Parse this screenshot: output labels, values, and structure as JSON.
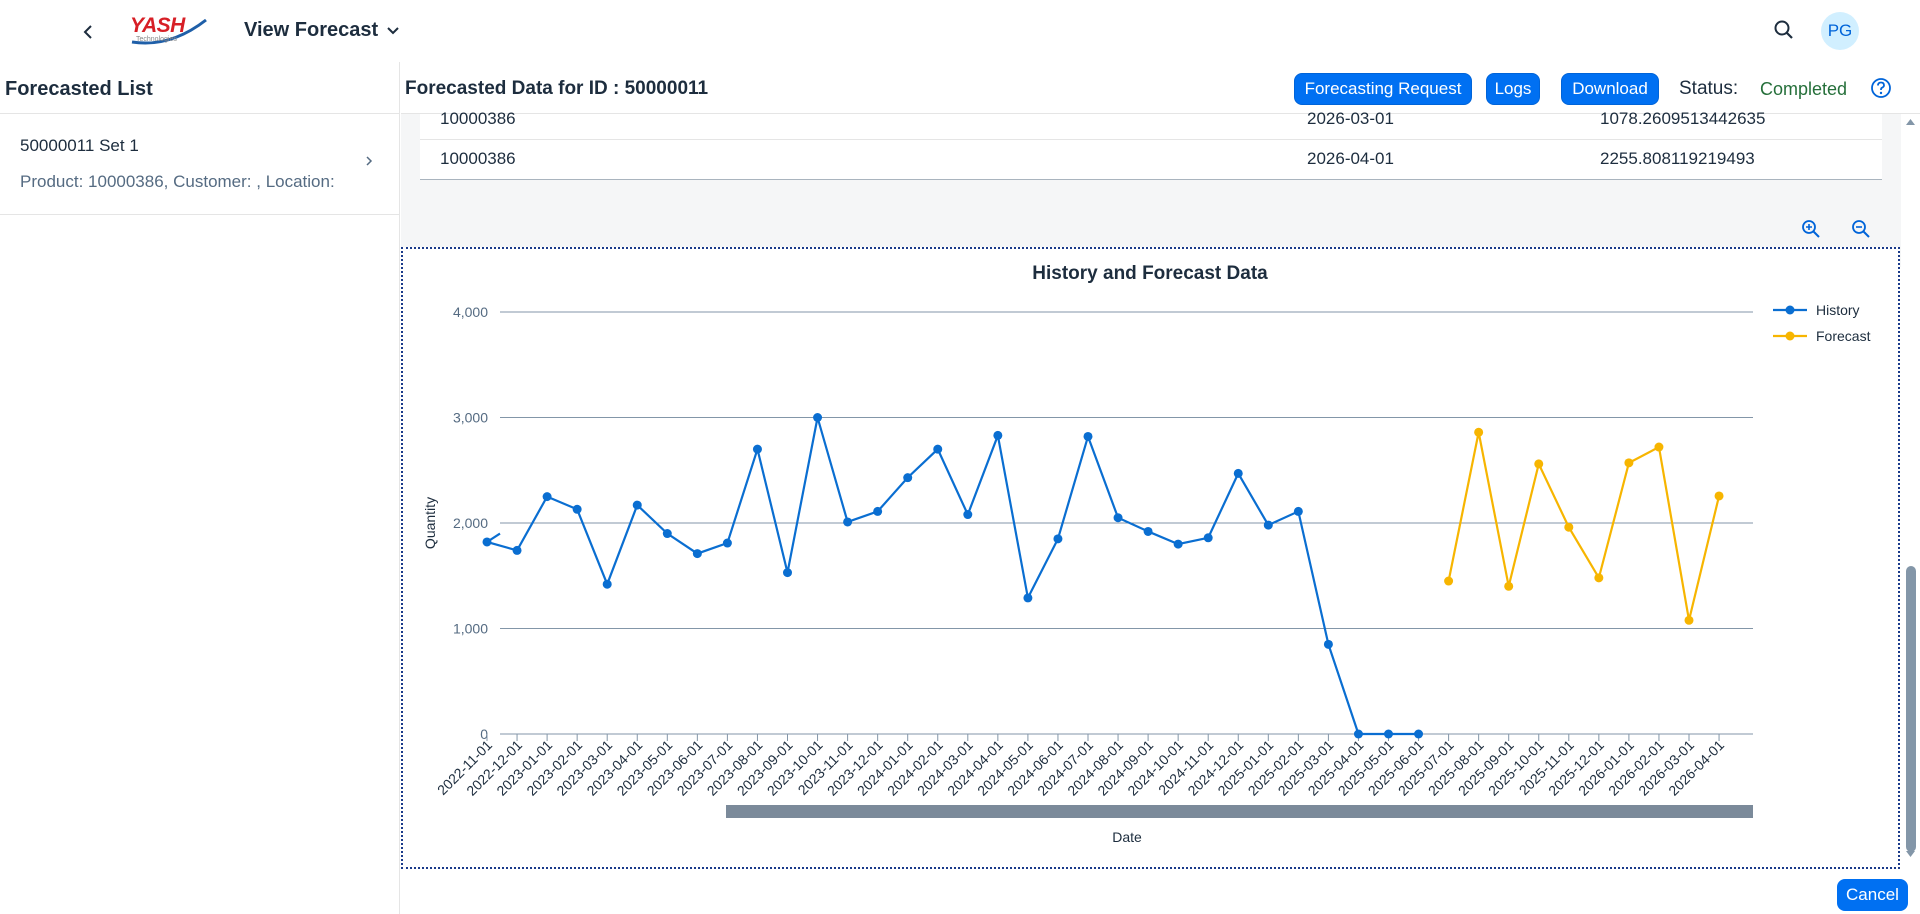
{
  "shell": {
    "app_title": "View Forecast",
    "logo_text": "YASH",
    "logo_sub": "Technologies",
    "avatar_initials": "PG"
  },
  "left": {
    "header": "Forecasted List",
    "items": [
      {
        "title": "50000011 Set 1",
        "subtitle": "Product: 10000386, Customer: , Location:"
      }
    ]
  },
  "right": {
    "title": "Forecasted Data for ID : 50000011",
    "buttons": {
      "forecasting_request": "Forecasting Request",
      "logs": "Logs",
      "download": "Download"
    },
    "status_label": "Status:",
    "status_value": "Completed",
    "table_rows": [
      {
        "product": "10000386",
        "date": "2026-03-01",
        "value": "1078.2609513442635"
      },
      {
        "product": "10000386",
        "date": "2026-04-01",
        "value": "2255.808119219493"
      }
    ],
    "cancel_label": "Cancel"
  },
  "colors": {
    "history": "#0a6ed1",
    "forecast": "#f7b500",
    "accent": "#0070f2",
    "status_positive": "#256f3a"
  },
  "chart_data": {
    "type": "line",
    "title": "History and Forecast Data",
    "xlabel": "Date",
    "ylabel": "Quantity",
    "ylim": [
      0,
      4000
    ],
    "yticks": [
      "0",
      "1,000",
      "2,000",
      "3,000",
      "4,000"
    ],
    "legend_position": "top-right",
    "grid": true,
    "categories": [
      "2022-11-01",
      "2022-12-01",
      "2023-01-01",
      "2023-02-01",
      "2023-03-01",
      "2023-04-01",
      "2023-05-01",
      "2023-06-01",
      "2023-07-01",
      "2023-08-01",
      "2023-09-01",
      "2023-10-01",
      "2023-11-01",
      "2023-12-01",
      "2024-01-01",
      "2024-02-01",
      "2024-03-01",
      "2024-04-01",
      "2024-05-01",
      "2024-06-01",
      "2024-07-01",
      "2024-08-01",
      "2024-09-01",
      "2024-10-01",
      "2024-11-01",
      "2024-12-01",
      "2025-01-01",
      "2025-02-01",
      "2025-03-01",
      "2025-04-01",
      "2025-05-01",
      "2025-06-01",
      "2025-07-01",
      "2025-08-01",
      "2025-09-01",
      "2025-10-01",
      "2025-11-01",
      "2025-12-01",
      "2026-01-01",
      "2026-02-01",
      "2026-03-01",
      "2026-04-01"
    ],
    "series": [
      {
        "name": "History",
        "values": [
          1820,
          1740,
          2250,
          2130,
          1420,
          2170,
          1900,
          1710,
          1810,
          2700,
          1530,
          3000,
          2010,
          2110,
          2430,
          2700,
          2080,
          2830,
          1290,
          1850,
          2820,
          2050,
          1920,
          1800,
          1860,
          2470,
          1980,
          2110,
          850,
          0,
          0,
          0,
          null,
          null,
          null,
          null,
          null,
          null,
          null,
          null,
          null,
          null
        ]
      },
      {
        "name": "Forecast",
        "values": [
          null,
          null,
          null,
          null,
          null,
          null,
          null,
          null,
          null,
          null,
          null,
          null,
          null,
          null,
          null,
          null,
          null,
          null,
          null,
          null,
          null,
          null,
          null,
          null,
          null,
          null,
          null,
          null,
          null,
          null,
          null,
          null,
          1450,
          2860,
          1400,
          2560,
          1960,
          1480,
          2570,
          2720,
          1078,
          2256
        ]
      }
    ]
  }
}
